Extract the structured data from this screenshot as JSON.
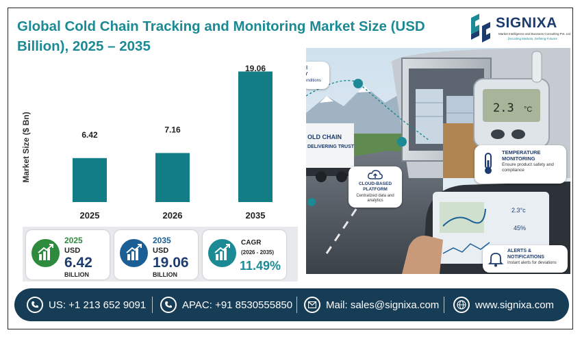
{
  "title": "Global Cold Chain Tracking and Monitoring Market Size (USD Billion), 2025 – 2035",
  "logo": {
    "name": "SIGNIXA",
    "subtitle": "Market Intelligence and Business Consulting Pvt. Ltd.",
    "tagline": "Decoding Markets. Defining Futures"
  },
  "chart_data": {
    "type": "bar",
    "categories": [
      "2025",
      "2026",
      "2035"
    ],
    "values": [
      6.42,
      7.16,
      19.06
    ],
    "value_labels": [
      "6.42",
      "7.16",
      "19.06"
    ],
    "title": "Global Cold Chain Tracking and Monitoring Market Size (USD Billion), 2025 – 2035",
    "xlabel": "",
    "ylabel": "Market Size ($ Bn)",
    "ylim": [
      0,
      21
    ],
    "grid": false,
    "legend": "none",
    "bar_color": "#127d84"
  },
  "stats": [
    {
      "year": "2025",
      "currency": "USD",
      "value": "6.42",
      "unit": "BILLION",
      "icon": "growth-chart-icon",
      "color": "#2e8b3e"
    },
    {
      "year": "2035",
      "currency": "USD",
      "value": "19.06",
      "unit": "BILLION",
      "icon": "growth-chart-icon",
      "color": "#1b5e96"
    },
    {
      "label": "CAGR",
      "period": "(2026 - 2035)",
      "value": "11.49%",
      "icon": "growth-chart-icon",
      "color": "#1b8a94"
    }
  ],
  "image_callouts": {
    "visibility_title": "E",
    "visibility_line2": "Y",
    "visibility_line3": "onditions",
    "truck_text_1": "OLD CHAIN",
    "truck_text_2": "DELIVERING TRUST",
    "device_reading": "2.3",
    "device_unit": "°C",
    "temp_title": "TEMPERATURE MONITORING",
    "temp_desc": "Ensure product safety and compliance",
    "cloud_title": "CLOUD-BASED PLATFORM",
    "cloud_desc": "Centralized data and analytics",
    "alerts_title": "ALERTS & NOTIFICATIONS",
    "alerts_desc": "Instant alerts for deviations",
    "tablet_temp": "2.3°c",
    "tablet_humidity": "45%"
  },
  "footer": {
    "us_phone": "US: +1 213 652 9091",
    "apac_phone": "APAC: +91 8530555850",
    "mail": "Mail: sales@signixa.com",
    "web": "www.signixa.com"
  },
  "colors": {
    "title": "#1b8a94",
    "bar": "#127d84",
    "footer_bg": "#163c56",
    "navy": "#1d3c6e"
  }
}
